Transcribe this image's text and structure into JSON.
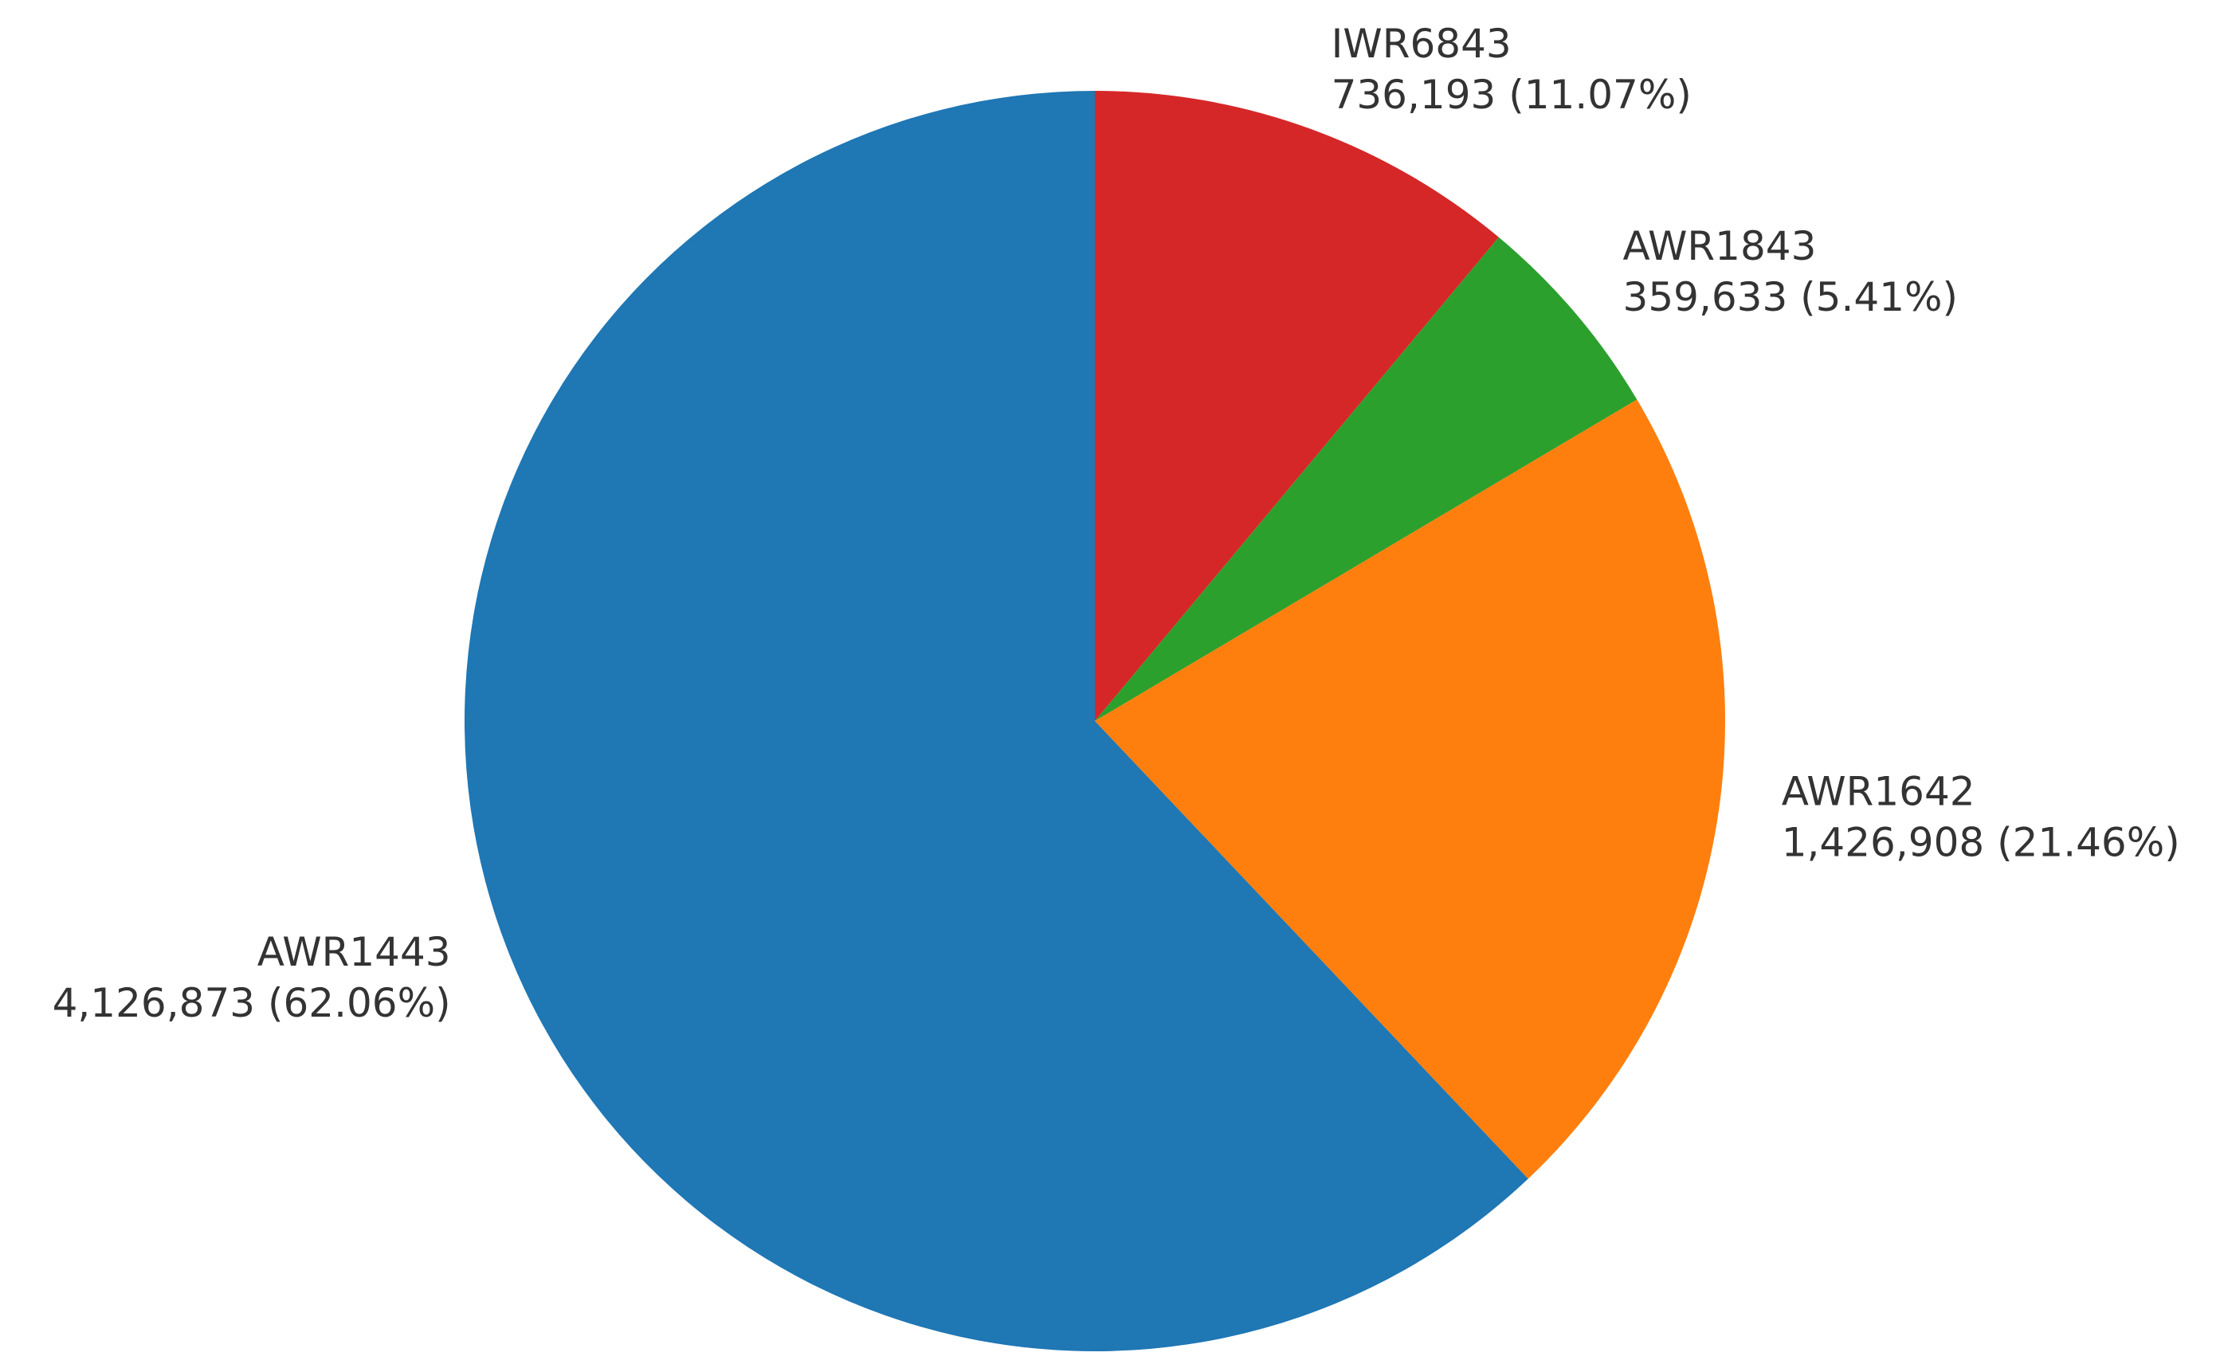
{
  "chart_data": {
    "type": "pie",
    "start_angle_deg": 90,
    "direction": "clockwise",
    "slices": [
      {
        "label": "IWR6843",
        "value": 736193,
        "value_text": "736,193",
        "percent_text": "(11.07%)",
        "color": "#d62728"
      },
      {
        "label": "AWR1843",
        "value": 359633,
        "value_text": "359,633",
        "percent_text": "(5.41%)",
        "color": "#2ca02c"
      },
      {
        "label": "AWR1642",
        "value": 1426908,
        "value_text": "1,426,908",
        "percent_text": "(21.46%)",
        "color": "#ff7f0e"
      },
      {
        "label": "AWR1443",
        "value": 4126873,
        "value_text": "4,126,873",
        "percent_text": "(62.06%)",
        "color": "#1f77b4"
      }
    ]
  }
}
